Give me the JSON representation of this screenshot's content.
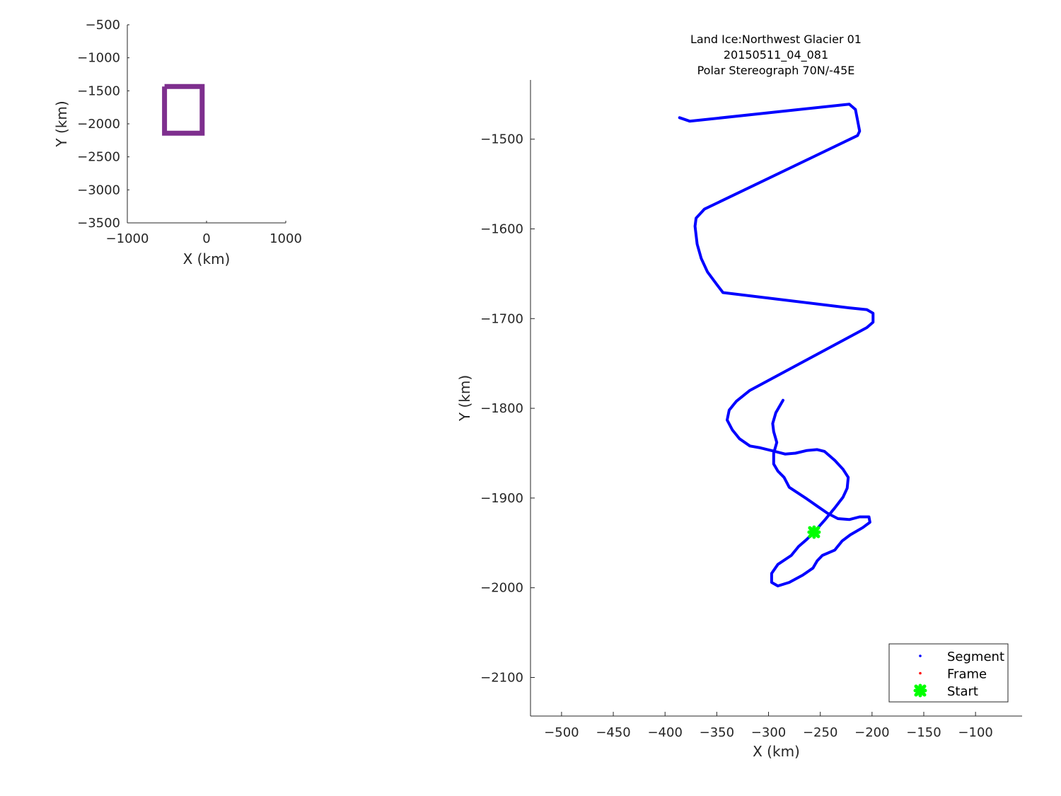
{
  "chart_data": [
    {
      "type": "line",
      "title": "",
      "xlabel": "X (km)",
      "ylabel": "Y (km)",
      "xlim": [
        -1000,
        1000
      ],
      "ylim": [
        -3500,
        -500
      ],
      "xticks": [
        -1000,
        0,
        1000
      ],
      "yticks": [
        -500,
        -1000,
        -1500,
        -2000,
        -2500,
        -3000,
        -3500
      ],
      "xtick_labels": [
        "−1000",
        "0",
        "1000"
      ],
      "ytick_labels": [
        "−500",
        "−1000",
        "−1500",
        "−2000",
        "−2500",
        "−3000",
        "−3500"
      ],
      "grid": false,
      "series": [
        {
          "color": "#7e2f8e",
          "x": [
            -530,
            -55,
            -55,
            -530,
            -530
          ],
          "y": [
            -1434,
            -1434,
            -2143,
            -2143,
            -1434
          ]
        }
      ]
    },
    {
      "type": "line",
      "title_lines": [
        "Land Ice:Northwest Glacier 01",
        "20150511_04_081",
        "Polar Stereograph 70N/-45E"
      ],
      "xlabel": "X (km)",
      "ylabel": "Y (km)",
      "xlim": [
        -530,
        -55
      ],
      "ylim": [
        -2143,
        -1434
      ],
      "xticks": [
        -500,
        -450,
        -400,
        -350,
        -300,
        -250,
        -200,
        -150,
        -100
      ],
      "yticks": [
        -1500,
        -1600,
        -1700,
        -1800,
        -1900,
        -2000,
        -2100
      ],
      "xtick_labels": [
        "−500",
        "−450",
        "−400",
        "−350",
        "−300",
        "−250",
        "−200",
        "−150",
        "−100"
      ],
      "ytick_labels": [
        "−1500",
        "−1600",
        "−1700",
        "−1800",
        "−1900",
        "−2000",
        "−2100"
      ],
      "grid": false,
      "legend_placement": "bottom-right",
      "legend": [
        {
          "label": "Segment",
          "color": "#0000ff",
          "marker": "dot"
        },
        {
          "label": "Frame",
          "color": "#ff0000",
          "marker": "dot"
        },
        {
          "label": "Start",
          "color": "#00ff00",
          "marker": "x-thick"
        }
      ],
      "segment": {
        "name": "Segment",
        "color": "#0000ff",
        "x": [
          -386,
          -376,
          -222,
          -216,
          -214,
          -212,
          -214,
          -362,
          -370,
          -371,
          -369,
          -365,
          -359,
          -350,
          -344,
          -222,
          -205,
          -199,
          -199,
          -205,
          -318,
          -331,
          -338,
          -340,
          -335,
          -328,
          -318,
          -308,
          -294,
          -284,
          -274,
          -263,
          -253,
          -246,
          -236,
          -228,
          -223,
          -224,
          -228,
          -236,
          -246,
          -256,
          -263,
          -271,
          -278,
          -291,
          -297,
          -297,
          -291,
          -280,
          -267,
          -257,
          -253,
          -248,
          -236,
          -229,
          -221,
          -209,
          -202,
          -203,
          -212,
          -222,
          -233,
          -243,
          -253,
          -263,
          -280,
          -285,
          -291,
          -295,
          -295,
          -292,
          -295,
          -296,
          -293,
          -286
        ],
        "y": [
          -1476,
          -1480,
          -1461,
          -1467,
          -1479,
          -1491,
          -1496,
          -1578,
          -1588,
          -1597,
          -1617,
          -1633,
          -1648,
          -1662,
          -1671,
          -1688,
          -1690,
          -1694,
          -1704,
          -1710,
          -1780,
          -1792,
          -1802,
          -1813,
          -1824,
          -1834,
          -1842,
          -1844,
          -1848,
          -1851,
          -1850,
          -1847,
          -1846,
          -1848,
          -1858,
          -1868,
          -1877,
          -1889,
          -1899,
          -1911,
          -1925,
          -1938,
          -1946,
          -1954,
          -1964,
          -1974,
          -1984,
          -1994,
          -1998,
          -1994,
          -1986,
          -1978,
          -1970,
          -1964,
          -1958,
          -1948,
          -1941,
          -1933,
          -1927,
          -1921,
          -1921,
          -1924,
          -1923,
          -1917,
          -1909,
          -1901,
          -1888,
          -1877,
          -1870,
          -1862,
          -1850,
          -1838,
          -1826,
          -1817,
          -1805,
          -1791
        ]
      },
      "start": {
        "name": "Start",
        "color": "#00ff00",
        "x": -256,
        "y": -1938
      }
    }
  ]
}
